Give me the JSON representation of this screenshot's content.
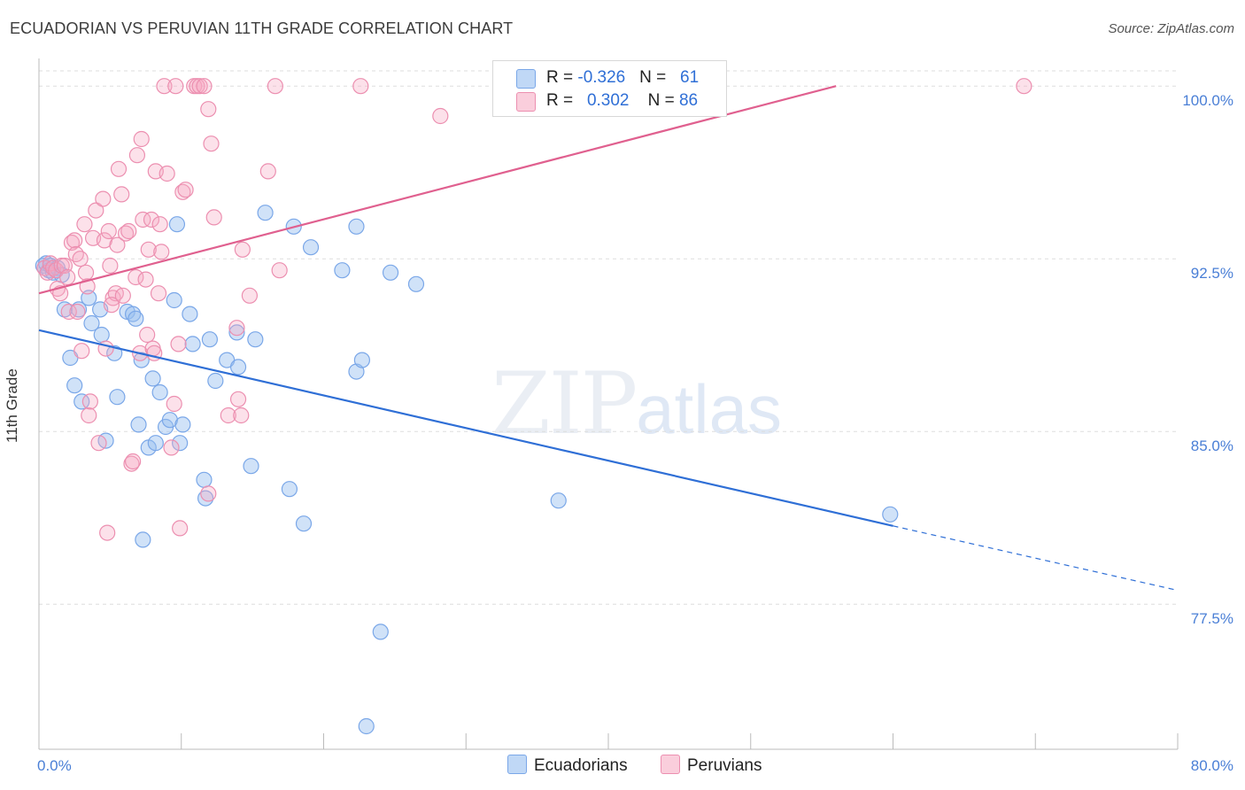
{
  "title": "ECUADORIAN VS PERUVIAN 11TH GRADE CORRELATION CHART",
  "source": "Source: ZipAtlas.com",
  "watermark": {
    "main": "ZIP",
    "sub": "atlas"
  },
  "colors": {
    "blue": "#7aa7e8",
    "blue_fill": "rgba(150,190,240,0.45)",
    "blue_line": "#2f6fd6",
    "pink": "#ec8fb0",
    "pink_fill": "rgba(245,170,195,0.35)",
    "pink_line": "#e0608f",
    "grid": "#dddddd",
    "tick_text": "#4a7fd6"
  },
  "legend": {
    "rows": [
      {
        "r_label": "R = ",
        "r_value": "-0.326",
        "n_label": "N = ",
        "n_value": "61"
      },
      {
        "r_label": "R = ",
        "r_value": "0.302",
        "n_label": "N = ",
        "n_value": "86"
      }
    ]
  },
  "chart_data": {
    "type": "scatter",
    "title": "ECUADORIAN VS PERUVIAN 11TH GRADE CORRELATION CHART",
    "xlabel": "",
    "ylabel": "11th Grade",
    "xlim": [
      0,
      80
    ],
    "ylim": [
      71.2,
      101.2
    ],
    "grid": true,
    "y_ticks": [
      {
        "value": 100.0,
        "label": "100.0%"
      },
      {
        "value": 92.5,
        "label": "92.5%"
      },
      {
        "value": 85.0,
        "label": "85.0%"
      },
      {
        "value": 77.5,
        "label": "77.5%"
      }
    ],
    "x_tick_labels": [
      {
        "value": 0,
        "label": "0.0%"
      },
      {
        "value": 80,
        "label": "80.0%"
      }
    ],
    "series": [
      {
        "name": "Ecuadorians",
        "color": "blue",
        "trend": {
          "x0": 0,
          "y0": 89.4,
          "x1": 60,
          "y1": 80.9,
          "dash_to": 80,
          "dash_y": 78.1
        },
        "points": [
          [
            0.3,
            92.2
          ],
          [
            0.5,
            92.3
          ],
          [
            0.7,
            92.0
          ],
          [
            0.8,
            92.2
          ],
          [
            1.0,
            91.9
          ],
          [
            1.3,
            92.1
          ],
          [
            1.6,
            91.8
          ],
          [
            1.8,
            90.3
          ],
          [
            2.2,
            88.2
          ],
          [
            2.5,
            87.0
          ],
          [
            2.8,
            90.3
          ],
          [
            3.0,
            86.3
          ],
          [
            3.5,
            90.8
          ],
          [
            3.7,
            89.7
          ],
          [
            4.3,
            90.3
          ],
          [
            4.4,
            89.2
          ],
          [
            4.7,
            84.6
          ],
          [
            5.3,
            88.4
          ],
          [
            5.5,
            86.5
          ],
          [
            6.2,
            90.2
          ],
          [
            6.6,
            90.1
          ],
          [
            6.8,
            89.9
          ],
          [
            7.0,
            85.3
          ],
          [
            7.2,
            88.1
          ],
          [
            7.3,
            80.3
          ],
          [
            7.7,
            84.3
          ],
          [
            8.0,
            87.3
          ],
          [
            8.2,
            84.5
          ],
          [
            8.5,
            86.7
          ],
          [
            8.9,
            85.2
          ],
          [
            9.2,
            85.5
          ],
          [
            9.5,
            90.7
          ],
          [
            9.7,
            94.0
          ],
          [
            9.9,
            84.5
          ],
          [
            10.1,
            85.3
          ],
          [
            10.6,
            90.1
          ],
          [
            10.8,
            88.8
          ],
          [
            11.6,
            82.9
          ],
          [
            11.7,
            82.1
          ],
          [
            12.0,
            89.0
          ],
          [
            12.4,
            87.2
          ],
          [
            13.2,
            88.1
          ],
          [
            14.0,
            87.8
          ],
          [
            13.9,
            89.3
          ],
          [
            14.9,
            83.5
          ],
          [
            15.2,
            89.0
          ],
          [
            15.9,
            94.5
          ],
          [
            17.6,
            82.5
          ],
          [
            17.9,
            93.9
          ],
          [
            18.6,
            81.0
          ],
          [
            19.1,
            93.0
          ],
          [
            21.3,
            92.0
          ],
          [
            22.3,
            87.6
          ],
          [
            22.3,
            93.9
          ],
          [
            22.7,
            88.1
          ],
          [
            24.7,
            91.9
          ],
          [
            26.5,
            91.4
          ],
          [
            24.0,
            76.3
          ],
          [
            23.0,
            72.2
          ],
          [
            36.5,
            82.0
          ],
          [
            59.8,
            81.4
          ]
        ]
      },
      {
        "name": "Peruvians",
        "color": "pink",
        "trend": {
          "x0": 0,
          "y0": 91.0,
          "x1": 56,
          "y1": 100.0
        },
        "points": [
          [
            0.4,
            92.1
          ],
          [
            0.6,
            91.9
          ],
          [
            0.8,
            92.3
          ],
          [
            1.0,
            92.1
          ],
          [
            1.2,
            92.0
          ],
          [
            1.3,
            91.2
          ],
          [
            1.5,
            91.0
          ],
          [
            1.6,
            92.2
          ],
          [
            1.8,
            92.2
          ],
          [
            2.0,
            91.7
          ],
          [
            2.1,
            90.2
          ],
          [
            2.3,
            93.2
          ],
          [
            2.5,
            93.3
          ],
          [
            2.6,
            92.7
          ],
          [
            2.7,
            90.2
          ],
          [
            2.9,
            92.5
          ],
          [
            3.0,
            88.5
          ],
          [
            3.2,
            94.0
          ],
          [
            3.3,
            91.9
          ],
          [
            3.5,
            85.7
          ],
          [
            3.6,
            86.3
          ],
          [
            3.8,
            93.4
          ],
          [
            4.0,
            94.6
          ],
          [
            4.2,
            84.5
          ],
          [
            4.5,
            95.1
          ],
          [
            4.6,
            93.3
          ],
          [
            4.7,
            88.6
          ],
          [
            4.8,
            80.6
          ],
          [
            4.9,
            93.7
          ],
          [
            5.0,
            92.2
          ],
          [
            5.2,
            90.8
          ],
          [
            5.4,
            91.0
          ],
          [
            5.5,
            93.1
          ],
          [
            5.6,
            96.4
          ],
          [
            5.8,
            95.3
          ],
          [
            5.9,
            90.9
          ],
          [
            6.1,
            93.6
          ],
          [
            6.3,
            93.7
          ],
          [
            6.5,
            83.6
          ],
          [
            6.6,
            83.7
          ],
          [
            6.8,
            91.7
          ],
          [
            6.9,
            97.0
          ],
          [
            7.1,
            88.4
          ],
          [
            7.2,
            97.7
          ],
          [
            7.3,
            94.2
          ],
          [
            7.5,
            91.6
          ],
          [
            7.6,
            89.2
          ],
          [
            7.7,
            92.9
          ],
          [
            7.9,
            94.2
          ],
          [
            8.0,
            88.6
          ],
          [
            8.1,
            88.4
          ],
          [
            8.2,
            96.3
          ],
          [
            8.4,
            91.0
          ],
          [
            8.5,
            94.0
          ],
          [
            8.6,
            92.8
          ],
          [
            8.8,
            100.0
          ],
          [
            9.0,
            96.2
          ],
          [
            9.3,
            84.3
          ],
          [
            9.5,
            86.2
          ],
          [
            9.6,
            100.0
          ],
          [
            9.8,
            88.8
          ],
          [
            9.9,
            80.8
          ],
          [
            10.1,
            95.4
          ],
          [
            10.3,
            95.5
          ],
          [
            10.9,
            100.0
          ],
          [
            11.1,
            100.0
          ],
          [
            11.3,
            100.0
          ],
          [
            11.6,
            100.0
          ],
          [
            11.9,
            99.0
          ],
          [
            11.9,
            82.3
          ],
          [
            12.1,
            97.5
          ],
          [
            12.3,
            94.3
          ],
          [
            13.3,
            85.7
          ],
          [
            13.9,
            89.5
          ],
          [
            14.0,
            86.4
          ],
          [
            14.2,
            85.7
          ],
          [
            14.3,
            92.9
          ],
          [
            14.8,
            90.9
          ],
          [
            16.1,
            96.3
          ],
          [
            16.6,
            100.0
          ],
          [
            16.9,
            92.0
          ],
          [
            22.6,
            100.0
          ],
          [
            28.2,
            98.7
          ],
          [
            69.2,
            100.0
          ],
          [
            5.1,
            90.5
          ],
          [
            3.4,
            91.3
          ]
        ]
      }
    ]
  },
  "bottom_legend": [
    {
      "label": "Ecuadorians",
      "color": "blue"
    },
    {
      "label": "Peruvians",
      "color": "pink"
    }
  ]
}
